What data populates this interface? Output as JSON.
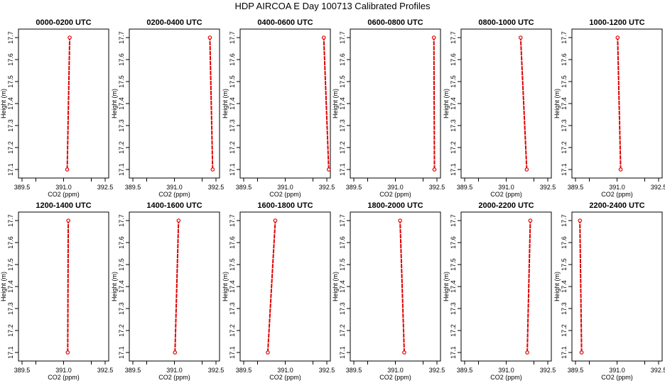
{
  "title": "HDP AIRCOA E  Day 100713  Calibrated Profiles",
  "colors": {
    "profile_line": "#e00000",
    "frame": "#000000",
    "background": "#ffffff"
  },
  "chart_data": [
    {
      "type": "line",
      "title": "0000-0200 UTC",
      "xlabel": "CO2 (ppm)",
      "ylabel": "Height (m)",
      "xlim": [
        389.5,
        392.5
      ],
      "ylim": [
        17.1,
        17.7
      ],
      "xticks": [
        "389.5",
        "391.0",
        "392.5"
      ],
      "xticks_minor": [
        "390.0",
        "392.0"
      ],
      "yticks": [
        "17.1",
        "17.2",
        "17.3",
        "17.4",
        "17.5",
        "17.6",
        "17.7"
      ],
      "grid": false,
      "series": [
        {
          "x": [
            391.13,
            391.22
          ],
          "y": [
            17.1,
            17.7
          ]
        }
      ]
    },
    {
      "type": "line",
      "title": "0200-0400 UTC",
      "xlabel": "CO2 (ppm)",
      "ylabel": "Height (m)",
      "xlim": [
        389.5,
        392.5
      ],
      "ylim": [
        17.1,
        17.7
      ],
      "xticks": [
        "389.5",
        "391.0",
        "392.5"
      ],
      "xticks_minor": [
        "390.0",
        "392.0"
      ],
      "yticks": [
        "17.1",
        "17.2",
        "17.3",
        "17.4",
        "17.5",
        "17.6",
        "17.7"
      ],
      "grid": false,
      "series": [
        {
          "x": [
            392.38,
            392.28
          ],
          "y": [
            17.1,
            17.7
          ]
        }
      ]
    },
    {
      "type": "line",
      "title": "0400-0600 UTC",
      "xlabel": "CO2 (ppm)",
      "ylabel": "Height (m)",
      "xlim": [
        389.5,
        392.5
      ],
      "ylim": [
        17.1,
        17.7
      ],
      "xticks": [
        "389.5",
        "391.0",
        "392.5"
      ],
      "xticks_minor": [
        "390.0",
        "392.0"
      ],
      "yticks": [
        "17.1",
        "17.2",
        "17.3",
        "17.4",
        "17.5",
        "17.6",
        "17.7"
      ],
      "grid": false,
      "series": [
        {
          "x": [
            392.57,
            392.39
          ],
          "y": [
            17.1,
            17.7
          ]
        }
      ]
    },
    {
      "type": "line",
      "title": "0600-0800 UTC",
      "xlabel": "CO2 (ppm)",
      "ylabel": "Height (m)",
      "xlim": [
        389.5,
        392.5
      ],
      "ylim": [
        17.1,
        17.7
      ],
      "xticks": [
        "389.5",
        "391.0",
        "392.5"
      ],
      "xticks_minor": [
        "390.0",
        "392.0"
      ],
      "yticks": [
        "17.1",
        "17.2",
        "17.3",
        "17.4",
        "17.5",
        "17.6",
        "17.7"
      ],
      "grid": false,
      "series": [
        {
          "x": [
            392.41,
            392.39
          ],
          "y": [
            17.1,
            17.7
          ]
        }
      ]
    },
    {
      "type": "line",
      "title": "0800-1000 UTC",
      "xlabel": "CO2 (ppm)",
      "ylabel": "Height (m)",
      "xlim": [
        389.5,
        392.5
      ],
      "ylim": [
        17.1,
        17.7
      ],
      "xticks": [
        "389.5",
        "391.0",
        "392.5"
      ],
      "xticks_minor": [
        "390.0",
        "392.0"
      ],
      "yticks": [
        "17.1",
        "17.2",
        "17.3",
        "17.4",
        "17.5",
        "17.6",
        "17.7"
      ],
      "grid": false,
      "series": [
        {
          "x": [
            391.74,
            391.52
          ],
          "y": [
            17.1,
            17.7
          ]
        }
      ]
    },
    {
      "type": "line",
      "title": "1000-1200 UTC",
      "xlabel": "CO2 (ppm)",
      "ylabel": "Height (m)",
      "xlim": [
        389.5,
        392.5
      ],
      "ylim": [
        17.1,
        17.7
      ],
      "xticks": [
        "389.5",
        "391.0",
        "392.5"
      ],
      "xticks_minor": [
        "390.0",
        "392.0"
      ],
      "yticks": [
        "17.1",
        "17.2",
        "17.3",
        "17.4",
        "17.5",
        "17.6",
        "17.7"
      ],
      "grid": false,
      "series": [
        {
          "x": [
            391.13,
            391.02
          ],
          "y": [
            17.1,
            17.7
          ]
        }
      ]
    },
    {
      "type": "line",
      "title": "1200-1400 UTC",
      "xlabel": "CO2 (ppm)",
      "ylabel": "Height (m)",
      "xlim": [
        389.5,
        392.5
      ],
      "ylim": [
        17.1,
        17.7
      ],
      "xticks": [
        "389.5",
        "391.0",
        "392.5"
      ],
      "xticks_minor": [
        "390.0",
        "392.0"
      ],
      "yticks": [
        "17.1",
        "17.2",
        "17.3",
        "17.4",
        "17.5",
        "17.6",
        "17.7"
      ],
      "grid": false,
      "series": [
        {
          "x": [
            391.15,
            391.17
          ],
          "y": [
            17.1,
            17.7
          ]
        }
      ]
    },
    {
      "type": "line",
      "title": "1400-1600 UTC",
      "xlabel": "CO2 (ppm)",
      "ylabel": "Height (m)",
      "xlim": [
        389.5,
        392.5
      ],
      "ylim": [
        17.1,
        17.7
      ],
      "xticks": [
        "389.5",
        "391.0",
        "392.5"
      ],
      "xticks_minor": [
        "390.0",
        "392.0"
      ],
      "yticks": [
        "17.1",
        "17.2",
        "17.3",
        "17.4",
        "17.5",
        "17.6",
        "17.7"
      ],
      "grid": false,
      "series": [
        {
          "x": [
            391.02,
            391.15
          ],
          "y": [
            17.1,
            17.7
          ]
        }
      ]
    },
    {
      "type": "line",
      "title": "1600-1800 UTC",
      "xlabel": "CO2 (ppm)",
      "ylabel": "Height (m)",
      "xlim": [
        389.5,
        392.5
      ],
      "ylim": [
        17.1,
        17.7
      ],
      "xticks": [
        "389.5",
        "391.0",
        "392.5"
      ],
      "xticks_minor": [
        "390.0",
        "392.0"
      ],
      "yticks": [
        "17.1",
        "17.2",
        "17.3",
        "17.4",
        "17.5",
        "17.6",
        "17.7"
      ],
      "grid": false,
      "series": [
        {
          "x": [
            390.37,
            390.64
          ],
          "y": [
            17.1,
            17.7
          ]
        }
      ]
    },
    {
      "type": "line",
      "title": "1800-2000 UTC",
      "xlabel": "CO2 (ppm)",
      "ylabel": "Height (m)",
      "xlim": [
        389.5,
        392.5
      ],
      "ylim": [
        17.1,
        17.7
      ],
      "xticks": [
        "389.5",
        "391.0",
        "392.5"
      ],
      "xticks_minor": [
        "390.0",
        "392.0"
      ],
      "yticks": [
        "17.1",
        "17.2",
        "17.3",
        "17.4",
        "17.5",
        "17.6",
        "17.7"
      ],
      "grid": false,
      "series": [
        {
          "x": [
            391.32,
            391.17
          ],
          "y": [
            17.1,
            17.7
          ]
        }
      ]
    },
    {
      "type": "line",
      "title": "2000-2200 UTC",
      "xlabel": "CO2 (ppm)",
      "ylabel": "Height (m)",
      "xlim": [
        389.5,
        392.5
      ],
      "ylim": [
        17.1,
        17.7
      ],
      "xticks": [
        "389.5",
        "391.0",
        "392.5"
      ],
      "xticks_minor": [
        "390.0",
        "392.0"
      ],
      "yticks": [
        "17.1",
        "17.2",
        "17.3",
        "17.4",
        "17.5",
        "17.6",
        "17.7"
      ],
      "grid": false,
      "series": [
        {
          "x": [
            391.76,
            391.87
          ],
          "y": [
            17.1,
            17.7
          ]
        }
      ]
    },
    {
      "type": "line",
      "title": "2200-2400 UTC",
      "xlabel": "CO2 (ppm)",
      "ylabel": "Height (m)",
      "xlim": [
        389.5,
        392.5
      ],
      "ylim": [
        17.1,
        17.7
      ],
      "xticks": [
        "389.5",
        "391.0",
        "392.5"
      ],
      "xticks_minor": [
        "390.0",
        "392.0"
      ],
      "yticks": [
        "17.1",
        "17.2",
        "17.3",
        "17.4",
        "17.5",
        "17.6",
        "17.7"
      ],
      "grid": false,
      "series": [
        {
          "x": [
            389.72,
            389.66
          ],
          "y": [
            17.1,
            17.7
          ]
        }
      ]
    }
  ]
}
